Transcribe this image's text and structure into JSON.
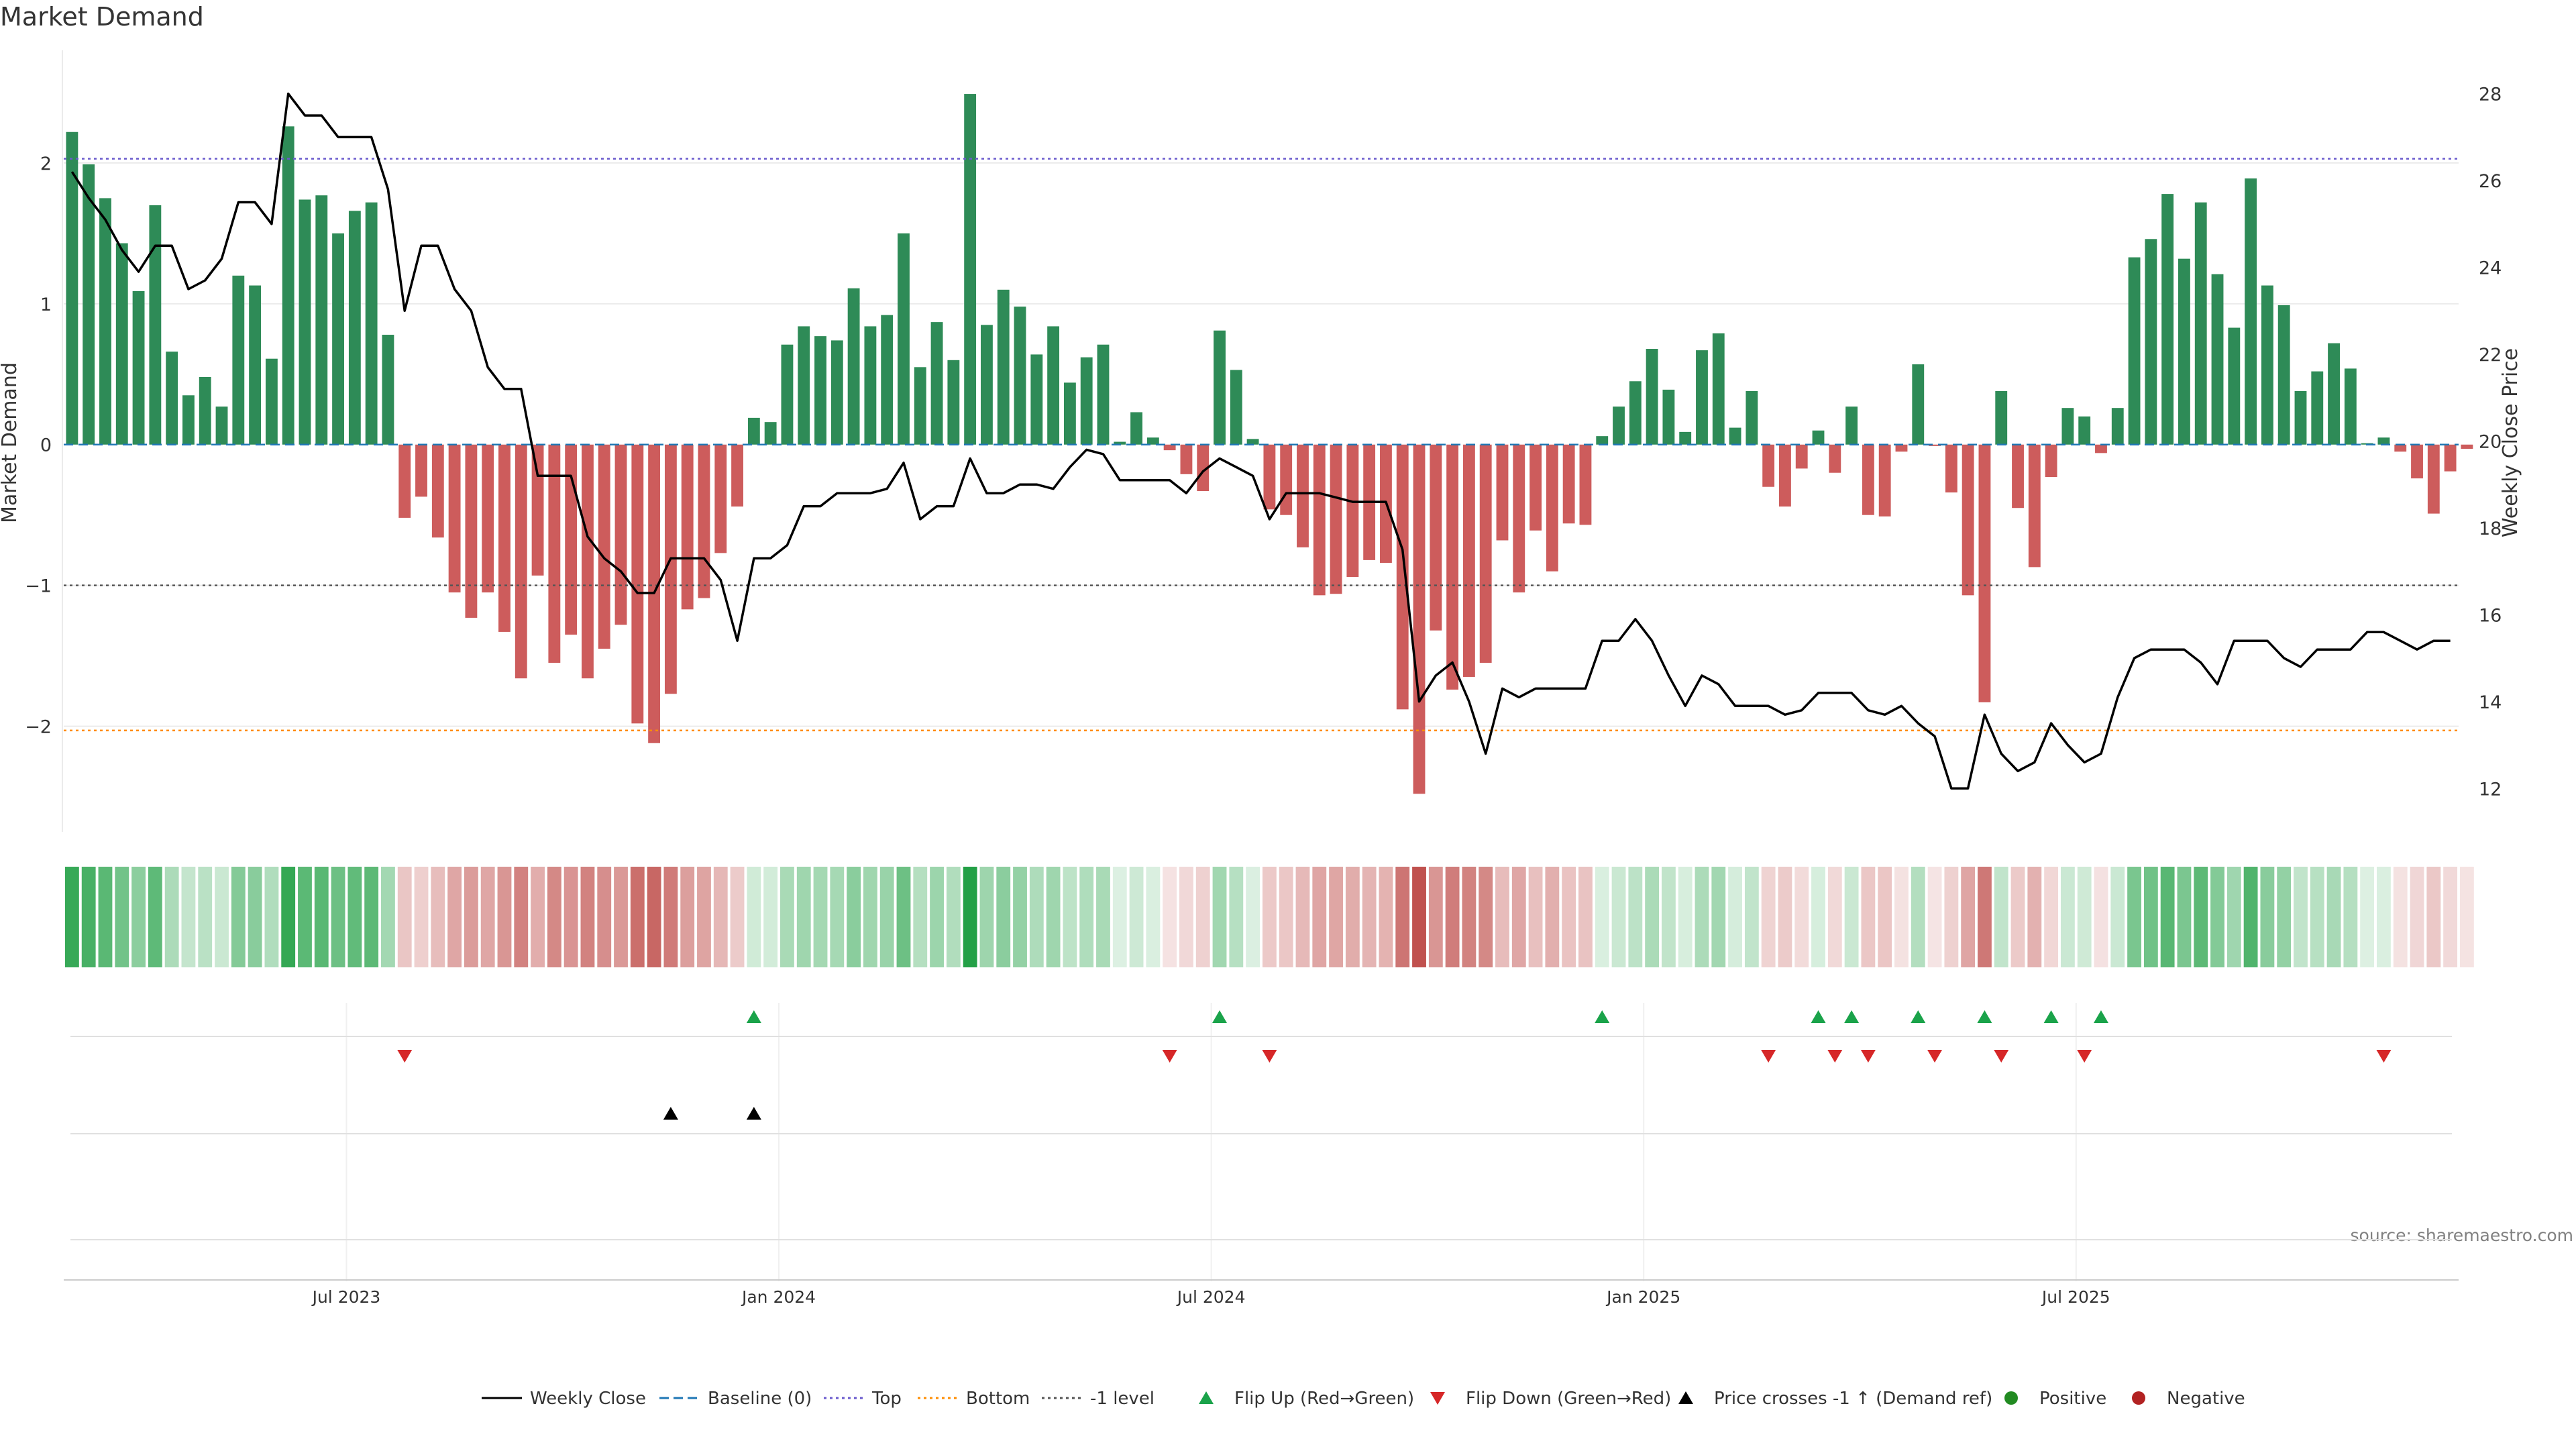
{
  "colors": {
    "pos": "#2e8b57",
    "neg": "#cd5c5c",
    "price": "#000000",
    "baseline": "#1f77b4",
    "top": "#6a5acd",
    "bottom": "#ff8c00",
    "minus1": "#555555",
    "flip_up": "#1aa34a",
    "flip_down": "#d62728",
    "cross": "#000000",
    "positive_dot": "#228b22",
    "negative_dot": "#b22222",
    "grid": "#ebebeb"
  },
  "chart_data": {
    "type": "bar",
    "title": "Market Demand",
    "ylabel": "Market Demand",
    "y2label": "Weekly Close Price",
    "ylim": [
      -2.75,
      2.8
    ],
    "y2lim": [
      11.0,
      29.0
    ],
    "yticks": [
      "2",
      "1",
      "0",
      "−1",
      "−2"
    ],
    "y2ticks": [
      "28",
      "26",
      "24",
      "22",
      "20",
      "18",
      "16",
      "14",
      "12"
    ],
    "reference_lines": {
      "top": 2.03,
      "bottom": -2.03,
      "minus1": -1.0,
      "baseline": 0.0
    },
    "x_start": "2023-03-06",
    "week_count": 144,
    "x_tick_labels": [
      {
        "label": "Jul 2023",
        "week": 17
      },
      {
        "label": "Jan 2024",
        "week": 43
      },
      {
        "label": "Jul 2024",
        "week": 69
      },
      {
        "label": "Jan 2025",
        "week": 95
      },
      {
        "label": "Jul 2025",
        "week": 121
      }
    ],
    "demand": [
      2.22,
      1.99,
      1.75,
      1.43,
      1.09,
      1.7,
      0.66,
      0.35,
      0.48,
      0.27,
      1.2,
      1.13,
      0.61,
      2.26,
      1.74,
      1.77,
      1.5,
      1.66,
      1.72,
      0.78,
      -0.52,
      -0.37,
      -0.66,
      -1.05,
      -1.23,
      -1.05,
      -1.33,
      -1.66,
      -0.93,
      -1.55,
      -1.35,
      -1.66,
      -1.45,
      -1.28,
      -1.98,
      -2.12,
      -1.77,
      -1.17,
      -1.09,
      -0.77,
      -0.44,
      0.19,
      0.16,
      0.71,
      0.84,
      0.77,
      0.74,
      1.11,
      0.84,
      0.92,
      1.5,
      0.55,
      0.87,
      0.6,
      2.49,
      0.85,
      1.1,
      0.98,
      0.64,
      0.84,
      0.44,
      0.62,
      0.71,
      0.02,
      0.23,
      0.05,
      -0.04,
      -0.21,
      -0.33,
      0.81,
      0.53,
      0.04,
      -0.46,
      -0.5,
      -0.73,
      -1.07,
      -1.06,
      -0.94,
      -0.82,
      -0.84,
      -1.88,
      -2.48,
      -1.32,
      -1.74,
      -1.65,
      -1.55,
      -0.68,
      -1.05,
      -0.61,
      -0.9,
      -0.56,
      -0.57,
      0.06,
      0.27,
      0.45,
      0.68,
      0.39,
      0.09,
      0.67,
      0.79,
      0.12,
      0.38,
      -0.3,
      -0.44,
      -0.17,
      0.1,
      -0.2,
      0.27,
      -0.5,
      -0.51,
      -0.05,
      0.57,
      -0.01,
      -0.34,
      -1.07,
      -1.83,
      0.38,
      -0.45,
      -0.87,
      -0.23,
      0.26,
      0.2,
      -0.06,
      0.26,
      1.33,
      1.46,
      1.78,
      1.32,
      1.72,
      1.21,
      0.83,
      1.89,
      1.13,
      0.99,
      0.38,
      0.52,
      0.72,
      0.54,
      0.01,
      0.05,
      -0.05,
      -0.24,
      -0.49,
      -0.19,
      -0.03
    ],
    "price": [
      26.2,
      25.6,
      25.1,
      24.4,
      23.9,
      24.5,
      24.5,
      23.5,
      23.7,
      24.2,
      25.5,
      25.5,
      25.0,
      28.0,
      27.5,
      27.5,
      27.0,
      27.0,
      27.0,
      25.8,
      23.0,
      24.5,
      24.5,
      23.5,
      23.0,
      21.7,
      21.2,
      21.2,
      19.2,
      19.2,
      19.2,
      17.8,
      17.3,
      17.0,
      16.5,
      16.5,
      17.3,
      17.3,
      17.3,
      16.8,
      15.4,
      17.3,
      17.3,
      17.6,
      18.5,
      18.5,
      18.8,
      18.8,
      18.8,
      18.9,
      19.5,
      18.2,
      18.5,
      18.5,
      19.6,
      18.8,
      18.8,
      19.0,
      19.0,
      18.9,
      19.4,
      19.8,
      19.7,
      19.1,
      19.1,
      19.1,
      19.1,
      18.8,
      19.3,
      19.6,
      19.4,
      19.2,
      18.2,
      18.8,
      18.8,
      18.8,
      18.7,
      18.6,
      18.6,
      18.6,
      17.5,
      14.0,
      14.6,
      14.9,
      14.0,
      12.8,
      14.3,
      14.1,
      14.3,
      14.3,
      14.3,
      14.3,
      15.4,
      15.4,
      15.9,
      15.4,
      14.6,
      13.9,
      14.6,
      14.4,
      13.9,
      13.9,
      13.9,
      13.7,
      13.8,
      14.2,
      14.2,
      14.2,
      13.8,
      13.7,
      13.9,
      13.5,
      13.2,
      12.0,
      12.0,
      13.7,
      12.8,
      12.4,
      12.6,
      13.5,
      13.0,
      12.6,
      12.8,
      14.1,
      15.0,
      15.2,
      15.2,
      15.2,
      14.9,
      14.4,
      15.4,
      15.4,
      15.4,
      15.0,
      14.8,
      15.2,
      15.2,
      15.2,
      15.6,
      15.6,
      15.4,
      15.2,
      15.4,
      15.4
    ],
    "flip_up_weeks": [
      41,
      69,
      92,
      105,
      107,
      111,
      115,
      119,
      122
    ],
    "flip_down_weeks": [
      20,
      66,
      72,
      102,
      106,
      108,
      112,
      116,
      121,
      139
    ],
    "price_cross_weeks": [
      36,
      41
    ],
    "source_label": "source: sharemaestro.com",
    "legend": [
      {
        "label": "Weekly Close",
        "kind": "line-solid",
        "color_key": "price"
      },
      {
        "label": "Baseline (0)",
        "kind": "line-dashed",
        "color_key": "baseline"
      },
      {
        "label": "Top",
        "kind": "line-dotted",
        "color_key": "top"
      },
      {
        "label": "Bottom",
        "kind": "line-dotted",
        "color_key": "bottom"
      },
      {
        "label": "-1 level",
        "kind": "line-dotted",
        "color_key": "minus1"
      },
      {
        "label": "Flip Up (Red→Green)",
        "kind": "tri-up",
        "color_key": "flip_up"
      },
      {
        "label": "Flip Down (Green→Red)",
        "kind": "tri-down",
        "color_key": "flip_down"
      },
      {
        "label": "Price crosses -1 ↑ (Demand ref)",
        "kind": "tri-up",
        "color_key": "cross"
      },
      {
        "label": "Positive",
        "kind": "dot",
        "color_key": "positive_dot"
      },
      {
        "label": "Negative",
        "kind": "dot",
        "color_key": "negative_dot"
      }
    ]
  }
}
